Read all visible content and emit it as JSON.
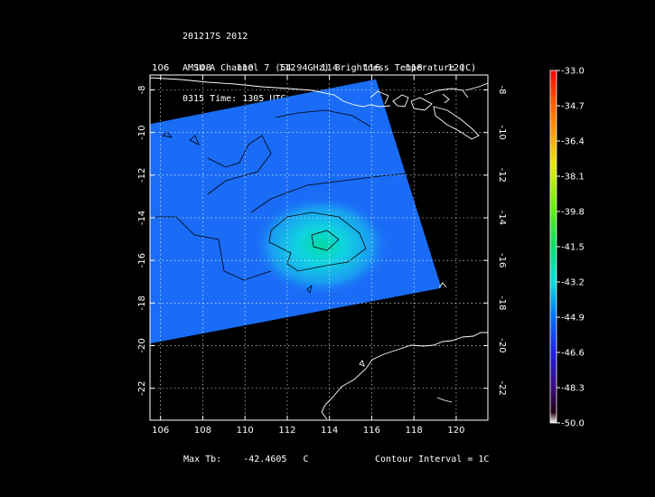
{
  "header": {
    "line1": "201217S 2012",
    "line2": "AMSU-A Channel 7 (54.94GHz) Brightness Temperature (C)",
    "line3": "0315 Time: 1305 UTC",
    "line4": "NOAA-16"
  },
  "map": {
    "lon_ticks": [
      "106",
      "108",
      "110",
      "112",
      "114",
      "116",
      "118",
      "120"
    ],
    "lat_ticks": [
      "-8",
      "-10",
      "-12",
      "-14",
      "-16",
      "-18",
      "-20",
      "-22"
    ],
    "lon_values": [
      106,
      108,
      110,
      112,
      114,
      116,
      118,
      120
    ],
    "lat_values": [
      -8,
      -10,
      -12,
      -14,
      -16,
      -18,
      -20,
      -22
    ],
    "lon_range": [
      105.5,
      121.5
    ],
    "lat_range": [
      -23.5,
      -7.3
    ],
    "swath_corners": [
      [
        105.5,
        -9.6
      ],
      [
        116.2,
        -7.5
      ],
      [
        119.3,
        -17.3
      ],
      [
        105.5,
        -19.9
      ]
    ],
    "storm_center": {
      "lon": 113.6,
      "lat": -15.3
    },
    "colors": {
      "background": "#000000",
      "coast": "#ffffff",
      "grid": "#ffffff",
      "contour": "#000000"
    }
  },
  "colorbar": {
    "labels": [
      "-33.0",
      "-34.7",
      "-36.4",
      "-38.1",
      "-39.8",
      "-41.5",
      "-43.2",
      "-44.9",
      "-46.6",
      "-48.3",
      "-50.0"
    ],
    "stops": [
      "#ff0000",
      "#ff5000",
      "#ff9800",
      "#e8e800",
      "#70f000",
      "#00e070",
      "#00e0e0",
      "#0070ff",
      "#2020e8",
      "#3a0a80",
      "#ffffff"
    ]
  },
  "footer": {
    "max_tb_label": "Max Tb:",
    "max_tb_value": "-42.4605",
    "max_tb_unit": "C",
    "contour": "Contour Interval = 1C"
  }
}
